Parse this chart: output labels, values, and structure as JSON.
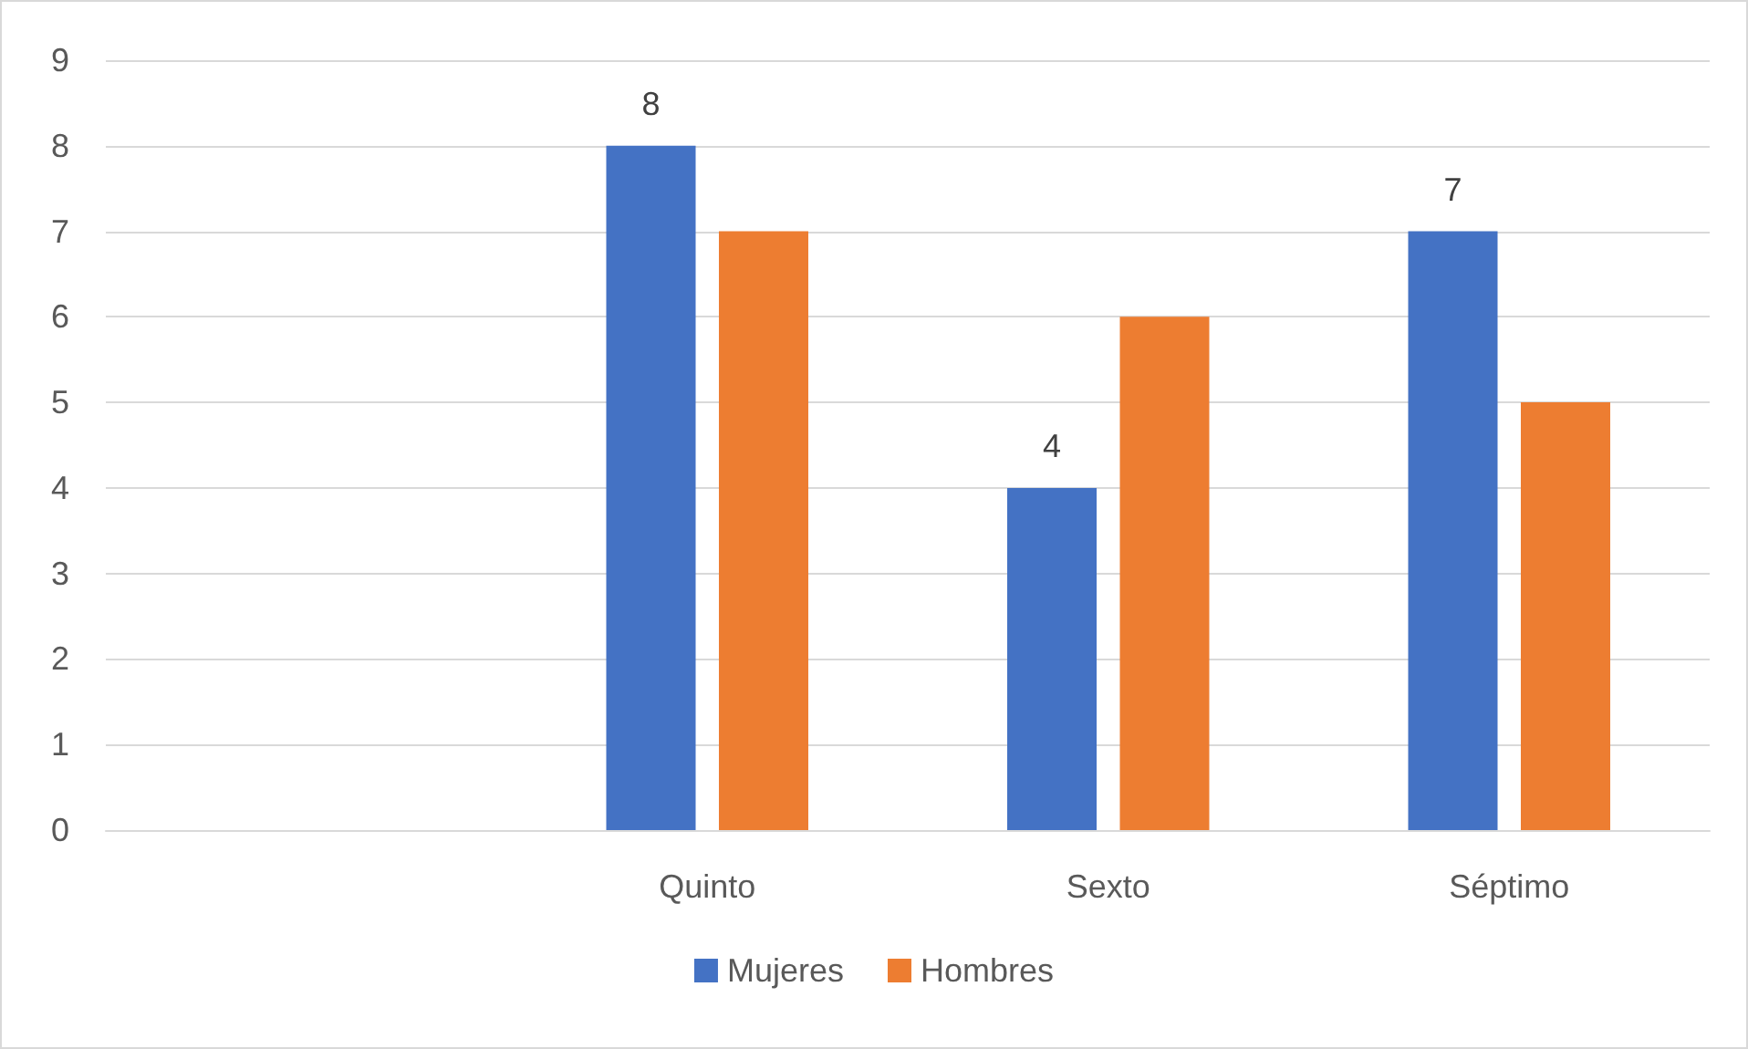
{
  "chart_data": {
    "type": "bar",
    "categories": [
      null,
      "Quinto",
      "Sexto",
      "Séptimo"
    ],
    "series": [
      {
        "name": "Mujeres",
        "color": "#4472c4",
        "values": [
          null,
          8,
          4,
          7
        ],
        "value_labels": [
          null,
          "8",
          "4",
          "7"
        ]
      },
      {
        "name": "Hombres",
        "color": "#ed7d31",
        "values": [
          null,
          7,
          6,
          5
        ]
      }
    ],
    "ylim": [
      0,
      9
    ],
    "yticks": [
      0,
      1,
      2,
      3,
      4,
      5,
      6,
      7,
      8,
      9
    ],
    "grid": "y",
    "legend": "bottom"
  }
}
